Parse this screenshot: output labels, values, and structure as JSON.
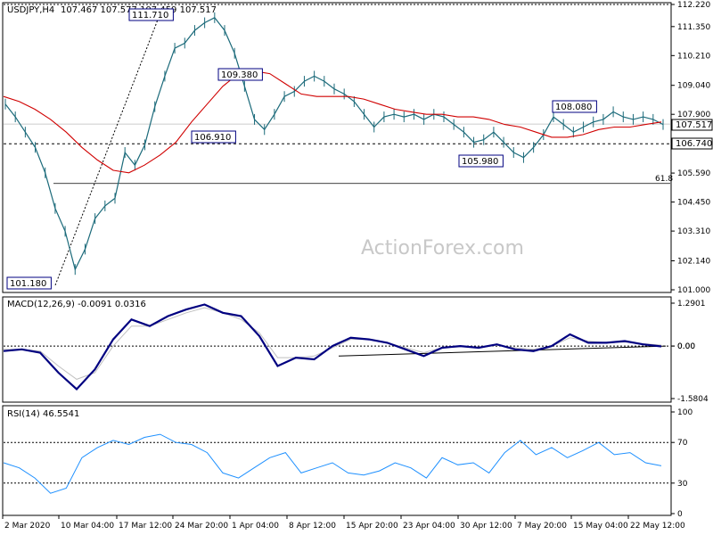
{
  "header": {
    "symbol": "USDJPY,H4",
    "ohlc": "107.467 107.577 107.459 107.517"
  },
  "watermark": "ActionForex.com",
  "chart_data": [
    {
      "type": "line",
      "panel": "price",
      "ylim": [
        101.0,
        112.22
      ],
      "y_ticks": [
        "112.220",
        "111.350",
        "110.210",
        "109.040",
        "107.900",
        "106.740",
        "105.590",
        "104.450",
        "103.310",
        "102.140",
        "101.000"
      ],
      "y_tick_values": [
        112.22,
        111.35,
        110.21,
        109.04,
        107.9,
        106.74,
        105.59,
        104.45,
        103.31,
        102.14,
        101.0
      ],
      "current_price_label": "107.517",
      "current_price": 107.517,
      "support_label": "106.740",
      "support_level": 106.74,
      "fib_label": "61.8",
      "fib_level": 105.18,
      "annotations": [
        {
          "text": "111.710",
          "value": 111.71,
          "x": "17 Mar 12:00"
        },
        {
          "text": "109.380",
          "value": 109.38,
          "x": "27 Mar"
        },
        {
          "text": "106.910",
          "value": 106.91,
          "x": "27 Mar"
        },
        {
          "text": "105.980",
          "value": 105.98,
          "x": "30 Apr"
        },
        {
          "text": "108.080",
          "value": 108.08,
          "x": "15 May"
        },
        {
          "text": "101.180",
          "value": 101.18,
          "x": "10 Mar"
        }
      ],
      "x_labels": [
        "2 Mar 2020",
        "10 Mar 04:00",
        "17 Mar 12:00",
        "24 Mar 20:00",
        "1 Apr 04:00",
        "8 Apr 12:00",
        "15 Apr 20:00",
        "23 Apr 04:00",
        "30 Apr 12:00",
        "7 May 20:00",
        "15 May 04:00",
        "22 May 12:00"
      ],
      "series": [
        {
          "values": [
            108.3,
            107.8,
            107.2,
            106.6,
            105.6,
            104.2,
            103.3,
            101.8,
            102.6,
            103.8,
            104.3,
            104.6,
            106.4,
            105.9,
            106.7,
            108.2,
            109.4,
            110.5,
            110.7,
            111.2,
            111.5,
            111.7,
            111.2,
            110.3,
            109.0,
            107.7,
            107.3,
            107.9,
            108.6,
            108.8,
            109.2,
            109.4,
            109.2,
            108.9,
            108.7,
            108.4,
            107.9,
            107.4,
            107.8,
            107.9,
            107.8,
            107.9,
            107.7,
            107.9,
            107.8,
            107.5,
            107.2,
            106.8,
            106.9,
            107.2,
            106.8,
            106.4,
            106.2,
            106.6,
            107.1,
            107.8,
            107.5,
            107.2,
            107.4,
            107.6,
            107.7,
            108.0,
            107.8,
            107.7,
            107.8,
            107.7,
            107.5
          ],
          "step_hours": 12,
          "start": "2 Mar 2020 00:00"
        },
        {
          "values": [
            108.6,
            108.4,
            108.1,
            107.7,
            107.2,
            106.6,
            106.1,
            105.7,
            105.6,
            105.9,
            106.3,
            106.8,
            107.6,
            108.3,
            109.0,
            109.5,
            109.6,
            109.5,
            109.1,
            108.7,
            108.6,
            108.6,
            108.6,
            108.5,
            108.3,
            108.1,
            108.0,
            107.9,
            107.9,
            107.8,
            107.8,
            107.7,
            107.5,
            107.4,
            107.2,
            107.0,
            107.0,
            107.1,
            107.3,
            107.4,
            107.4,
            107.5,
            107.6
          ],
          "name": "",
          "step_hours": 20,
          "start": "2 Mar 2020 00:00"
        }
      ]
    },
    {
      "type": "line",
      "panel": "MACD",
      "label": "MACD(12,26,9) -0.0091 0.0316",
      "ylim": [
        -1.5804,
        1.2901
      ],
      "y_ticks": [
        "1.2901",
        "0.00",
        "0.00",
        "-1.5804"
      ],
      "series": [
        {
          "values": [
            -0.15,
            -0.1,
            -0.2,
            -0.8,
            -1.3,
            -0.7,
            0.2,
            0.8,
            0.6,
            0.9,
            1.1,
            1.25,
            1.0,
            0.9,
            0.3,
            -0.6,
            -0.35,
            -0.4,
            0.0,
            0.25,
            0.2,
            0.1,
            -0.1,
            -0.3,
            -0.05,
            0.0,
            -0.05,
            0.05,
            -0.1,
            -0.15,
            0.0,
            0.35,
            0.1,
            0.1,
            0.15,
            0.05,
            -0.01
          ]
        },
        {
          "values": [
            -0.1,
            -0.1,
            -0.15,
            -0.6,
            -1.0,
            -0.8,
            0.0,
            0.6,
            0.6,
            0.8,
            1.0,
            1.15,
            1.0,
            0.8,
            0.4,
            -0.35,
            -0.35,
            -0.3,
            -0.05,
            0.2,
            0.2,
            0.1,
            -0.05,
            -0.2,
            -0.05,
            0.0,
            -0.05,
            0.02,
            -0.05,
            -0.1,
            0.0,
            0.25,
            0.15,
            0.1,
            0.12,
            0.07,
            0.03
          ]
        }
      ]
    },
    {
      "type": "line",
      "panel": "RSI",
      "label": "RSI(14) 46.5541",
      "ylim": [
        0,
        100
      ],
      "y_ticks": [
        "100",
        "70",
        "30",
        "0"
      ],
      "y_tick_values": [
        100,
        70,
        30,
        0
      ],
      "series": [
        {
          "values": [
            50,
            45,
            35,
            20,
            25,
            55,
            65,
            72,
            68,
            75,
            78,
            70,
            68,
            60,
            40,
            35,
            45,
            55,
            60,
            40,
            45,
            50,
            40,
            38,
            42,
            50,
            45,
            35,
            55,
            48,
            50,
            40,
            60,
            72,
            58,
            65,
            55,
            62,
            70,
            58,
            60,
            50,
            47
          ]
        }
      ]
    }
  ]
}
